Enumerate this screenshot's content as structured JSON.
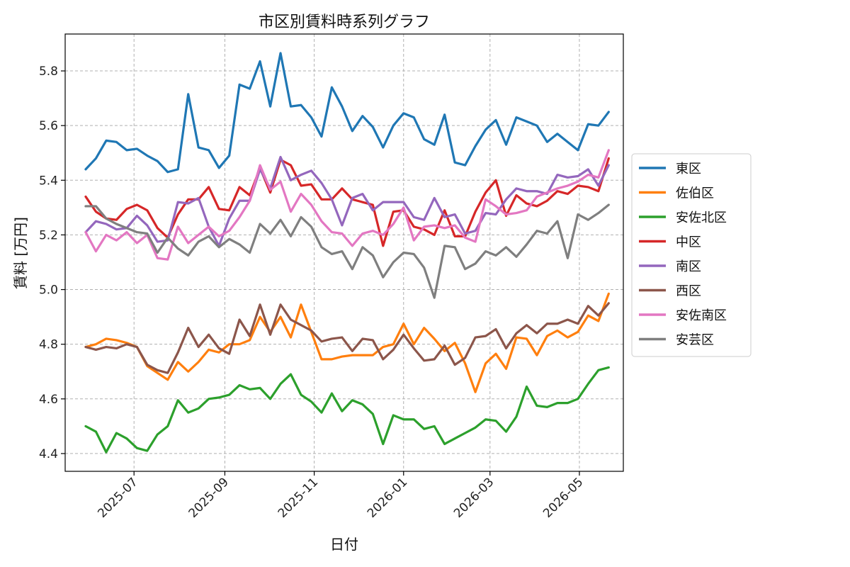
{
  "chart_data": {
    "type": "line",
    "title": "市区別賃料時系列グラフ",
    "xlabel": "日付",
    "ylabel": "賃料 [万円]",
    "xlim": [
      "2025-05-15",
      "2026-05-31"
    ],
    "ylim": [
      4.335,
      5.935
    ],
    "x_ticks": [
      "2025-07-01",
      "2025-09-01",
      "2025-11-01",
      "2026-01-01",
      "2026-03-01",
      "2026-05-01"
    ],
    "x_tick_labels": [
      "2025-07",
      "2025-09",
      "2025-11",
      "2026-01",
      "2026-03",
      "2026-05"
    ],
    "y_ticks": [
      4.4,
      4.6,
      4.8,
      5.0,
      5.2,
      5.4,
      5.6,
      5.8
    ],
    "y_tick_labels": [
      "4.4",
      "4.6",
      "4.8",
      "5.0",
      "5.2",
      "5.4",
      "5.6",
      "5.8"
    ],
    "grid": true,
    "legend_position": "outside-right",
    "x": [
      "2025-05-29",
      "2025-06-05",
      "2025-06-12",
      "2025-06-19",
      "2025-06-26",
      "2025-07-03",
      "2025-07-10",
      "2025-07-17",
      "2025-07-24",
      "2025-07-31",
      "2025-08-07",
      "2025-08-14",
      "2025-08-21",
      "2025-08-28",
      "2025-09-04",
      "2025-09-11",
      "2025-09-18",
      "2025-09-25",
      "2025-10-02",
      "2025-10-09",
      "2025-10-16",
      "2025-10-23",
      "2025-10-30",
      "2025-11-06",
      "2025-11-13",
      "2025-11-20",
      "2025-11-27",
      "2025-12-04",
      "2025-12-11",
      "2025-12-18",
      "2025-12-25",
      "2026-01-01",
      "2026-01-08",
      "2026-01-15",
      "2026-01-22",
      "2026-01-29",
      "2026-02-05",
      "2026-02-12",
      "2026-02-19",
      "2026-02-26",
      "2026-03-05",
      "2026-03-12",
      "2026-03-19",
      "2026-03-26",
      "2026-04-02",
      "2026-04-09",
      "2026-04-16",
      "2026-04-23",
      "2026-04-30",
      "2026-05-07",
      "2026-05-14"
    ],
    "series": [
      {
        "name": "東区",
        "color": "#1f77b4",
        "values": [
          5.44,
          5.48,
          5.545,
          5.54,
          5.51,
          5.515,
          5.49,
          5.47,
          5.43,
          5.44,
          5.715,
          5.52,
          5.51,
          5.445,
          5.49,
          5.75,
          5.735,
          5.835,
          5.67,
          5.865,
          5.67,
          5.675,
          5.63,
          5.56,
          5.74,
          5.67,
          5.58,
          5.635,
          5.595,
          5.52,
          5.6,
          5.645,
          5.63,
          5.55,
          5.53,
          5.64,
          5.465,
          5.455,
          5.525,
          5.585,
          5.62,
          5.53,
          5.63,
          5.615,
          5.6,
          5.54,
          5.57,
          5.54,
          5.51,
          5.605,
          5.6
        ]
      },
      {
        "name": "佐伯区",
        "color": "#ff7f0e",
        "values": [
          4.79,
          4.8,
          4.82,
          4.815,
          4.805,
          4.79,
          4.72,
          4.695,
          4.67,
          4.735,
          4.7,
          4.735,
          4.78,
          4.77,
          4.8,
          4.8,
          4.815,
          4.9,
          4.845,
          4.9,
          4.825,
          4.945,
          4.845,
          4.745,
          4.745,
          4.755,
          4.76,
          4.76,
          4.76,
          4.79,
          4.8,
          4.875,
          4.8,
          4.86,
          4.82,
          4.775,
          4.805,
          4.73,
          4.625,
          4.73,
          4.765,
          4.71,
          4.825,
          4.82,
          4.76,
          4.83,
          4.85,
          4.825,
          4.845,
          4.905,
          4.885
        ]
      },
      {
        "name": "安佐北区",
        "color": "#2ca02c",
        "values": [
          4.5,
          4.48,
          4.405,
          4.475,
          4.455,
          4.42,
          4.41,
          4.47,
          4.5,
          4.595,
          4.55,
          4.565,
          4.6,
          4.605,
          4.615,
          4.65,
          4.635,
          4.64,
          4.6,
          4.655,
          4.69,
          4.615,
          4.59,
          4.55,
          4.62,
          4.555,
          4.595,
          4.58,
          4.545,
          4.435,
          4.54,
          4.525,
          4.525,
          4.49,
          4.5,
          4.435,
          4.455,
          4.475,
          4.495,
          4.525,
          4.52,
          4.48,
          4.535,
          4.645,
          4.575,
          4.57,
          4.585,
          4.585,
          4.6,
          4.655,
          4.705
        ]
      },
      {
        "name": "中区",
        "color": "#d62728",
        "values": [
          5.34,
          5.285,
          5.26,
          5.255,
          5.295,
          5.31,
          5.29,
          5.225,
          5.19,
          5.275,
          5.33,
          5.33,
          5.375,
          5.295,
          5.29,
          5.375,
          5.345,
          5.445,
          5.355,
          5.475,
          5.455,
          5.38,
          5.385,
          5.33,
          5.33,
          5.37,
          5.33,
          5.32,
          5.31,
          5.16,
          5.285,
          5.29,
          5.23,
          5.22,
          5.2,
          5.29,
          5.195,
          5.195,
          5.285,
          5.355,
          5.4,
          5.27,
          5.345,
          5.315,
          5.305,
          5.325,
          5.36,
          5.35,
          5.38,
          5.375,
          5.36
        ]
      },
      {
        "name": "南区",
        "color": "#9467bd",
        "values": [
          5.21,
          5.25,
          5.24,
          5.22,
          5.225,
          5.27,
          5.235,
          5.175,
          5.18,
          5.32,
          5.315,
          5.335,
          5.23,
          5.16,
          5.26,
          5.325,
          5.325,
          5.44,
          5.37,
          5.485,
          5.4,
          5.42,
          5.435,
          5.39,
          5.33,
          5.235,
          5.335,
          5.35,
          5.29,
          5.32,
          5.32,
          5.32,
          5.265,
          5.255,
          5.335,
          5.265,
          5.275,
          5.205,
          5.215,
          5.28,
          5.275,
          5.33,
          5.37,
          5.36,
          5.36,
          5.35,
          5.42,
          5.41,
          5.415,
          5.44,
          5.38
        ]
      },
      {
        "name": "西区",
        "color": "#8c564b",
        "values": [
          4.79,
          4.78,
          4.79,
          4.785,
          4.8,
          4.79,
          4.725,
          4.705,
          4.695,
          4.77,
          4.86,
          4.79,
          4.835,
          4.785,
          4.765,
          4.89,
          4.83,
          4.945,
          4.835,
          4.945,
          4.89,
          4.87,
          4.85,
          4.81,
          4.82,
          4.825,
          4.775,
          4.82,
          4.815,
          4.745,
          4.78,
          4.835,
          4.785,
          4.74,
          4.745,
          4.795,
          4.725,
          4.75,
          4.825,
          4.83,
          4.855,
          4.785,
          4.84,
          4.87,
          4.84,
          4.875,
          4.875,
          4.89,
          4.875,
          4.94,
          4.905
        ]
      },
      {
        "name": "安佐南区",
        "color": "#e377c2",
        "values": [
          5.21,
          5.14,
          5.2,
          5.18,
          5.21,
          5.17,
          5.2,
          5.115,
          5.11,
          5.23,
          5.17,
          5.2,
          5.23,
          5.195,
          5.215,
          5.265,
          5.325,
          5.455,
          5.365,
          5.395,
          5.285,
          5.35,
          5.31,
          5.25,
          5.21,
          5.205,
          5.16,
          5.205,
          5.215,
          5.2,
          5.24,
          5.3,
          5.18,
          5.23,
          5.235,
          5.225,
          5.235,
          5.19,
          5.175,
          5.33,
          5.305,
          5.275,
          5.28,
          5.29,
          5.34,
          5.355,
          5.37,
          5.38,
          5.395,
          5.42,
          5.41
        ]
      },
      {
        "name": "安芸区",
        "color": "#7f7f7f",
        "values": [
          5.305,
          5.305,
          5.26,
          5.24,
          5.225,
          5.21,
          5.205,
          5.135,
          5.19,
          5.15,
          5.125,
          5.175,
          5.195,
          5.155,
          5.185,
          5.165,
          5.135,
          5.24,
          5.205,
          5.255,
          5.195,
          5.265,
          5.23,
          5.155,
          5.13,
          5.14,
          5.075,
          5.155,
          5.125,
          5.045,
          5.1,
          5.135,
          5.13,
          5.08,
          4.97,
          5.16,
          5.155,
          5.075,
          5.095,
          5.14,
          5.125,
          5.155,
          5.12,
          5.165,
          5.215,
          5.205,
          5.25,
          5.115,
          5.275,
          5.255,
          5.28
        ]
      }
    ],
    "series_extra_last_point": {
      "x": "2026-05-21",
      "values": {
        "東区": 5.65,
        "佐伯区": 4.985,
        "安佐北区": 4.715,
        "中区": 5.48,
        "南区": 5.455,
        "西区": 4.95,
        "安佐南区": 5.51,
        "安芸区": 5.31
      }
    }
  }
}
